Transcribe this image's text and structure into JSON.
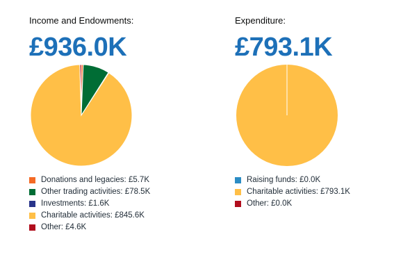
{
  "chart_data": [
    {
      "type": "pie",
      "title": "Income and Endowments:",
      "total": "£936.0K",
      "slices": [
        {
          "label": "Donations and legacies: £5.7K",
          "value": 5.7,
          "color": "#f46a25"
        },
        {
          "label": "Other trading activities: £78.5K",
          "value": 78.5,
          "color": "#006d35"
        },
        {
          "label": "Investments: £1.6K",
          "value": 1.6,
          "color": "#28348a"
        },
        {
          "label": "Charitable activities: £845.6K",
          "value": 845.6,
          "color": "#ffbf47"
        },
        {
          "label": "Other: £4.6K",
          "value": 4.6,
          "color": "#b10e1e"
        }
      ],
      "legend_position": "bottom"
    },
    {
      "type": "pie",
      "title": "Expenditure:",
      "total": "£793.1K",
      "slices": [
        {
          "label": "Raising funds: £0.0K",
          "value": 0.0,
          "color": "#2b8cc4"
        },
        {
          "label": "Charitable activities: £793.1K",
          "value": 793.1,
          "color": "#ffbf47"
        },
        {
          "label": "Other: £0.0K",
          "value": 0.0,
          "color": "#b10e1e"
        }
      ],
      "legend_position": "bottom"
    }
  ]
}
